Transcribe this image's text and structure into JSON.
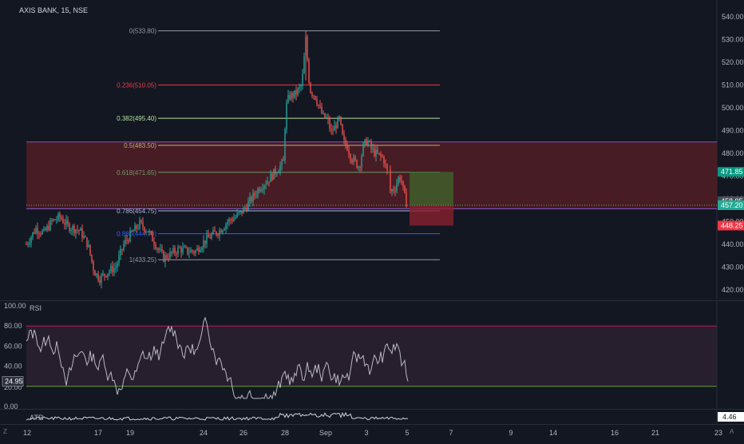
{
  "symbol": {
    "title": "AXIS BANK, 15, NSE"
  },
  "price_axis": {
    "ticks": [
      "540.00",
      "530.00",
      "520.00",
      "510.00",
      "500.00",
      "490.00",
      "480.00",
      "470.00",
      "460.00",
      "450.00",
      "440.00",
      "430.00",
      "420.00"
    ],
    "tick_values": [
      540,
      530,
      520,
      510,
      500,
      490,
      480,
      470,
      460,
      450,
      440,
      430,
      420
    ],
    "labels": [
      {
        "text": "471.85",
        "value": 471.85,
        "color": "#089981"
      },
      {
        "text": "458.95",
        "value": 458.95,
        "color": "#4a4e59"
      },
      {
        "text": "457.20",
        "value": 457.2,
        "color": "#22ab94"
      },
      {
        "text": "448.25",
        "value": 448.25,
        "color": "#f23645"
      }
    ]
  },
  "fibonacci": [
    {
      "label": "0(533.80)",
      "value": 533.8,
      "color": "#9598a1"
    },
    {
      "label": "0.236(510.05)",
      "value": 510.05,
      "color": "#f23645"
    },
    {
      "label": "0.382(495.40)",
      "value": 495.4,
      "color": "#b6e3a0"
    },
    {
      "label": "0.5(483.50)",
      "value": 483.5,
      "color": "#b8b07a"
    },
    {
      "label": "0.618(471.65)",
      "value": 471.65,
      "color": "#6f9a63"
    },
    {
      "label": "0.786(454.75)",
      "value": 454.75,
      "color": "#a8b8d8"
    },
    {
      "label": "0.886(444.70)",
      "value": 444.7,
      "color": "#2962ff"
    },
    {
      "label": "1(433.25)",
      "value": 433.25,
      "color": "#9598a1"
    }
  ],
  "zone": {
    "top": 485.0,
    "bottom": 455.6,
    "color": "#5a1f26"
  },
  "position": {
    "target": 471.85,
    "entry": 457.2,
    "stop": 448.25
  },
  "rsi": {
    "title": "RSI",
    "ticks": [
      "100.00",
      "80.00",
      "60.00",
      "40.00",
      "20.00",
      "0.00"
    ],
    "tick_values": [
      100,
      80,
      60,
      40,
      20,
      0
    ],
    "upper": 80,
    "lower": 20,
    "current": "24.95",
    "current_value": 24.95
  },
  "atr": {
    "title": "ATR",
    "value": "4.46"
  },
  "x_axis": {
    "labels": [
      "12",
      "17",
      "19",
      "24",
      "26",
      "28",
      "Sep",
      "3",
      "5",
      "7",
      "9",
      "14",
      "16",
      "21",
      "23"
    ]
  },
  "corner": {
    "left": "Z",
    "right": "A"
  }
}
